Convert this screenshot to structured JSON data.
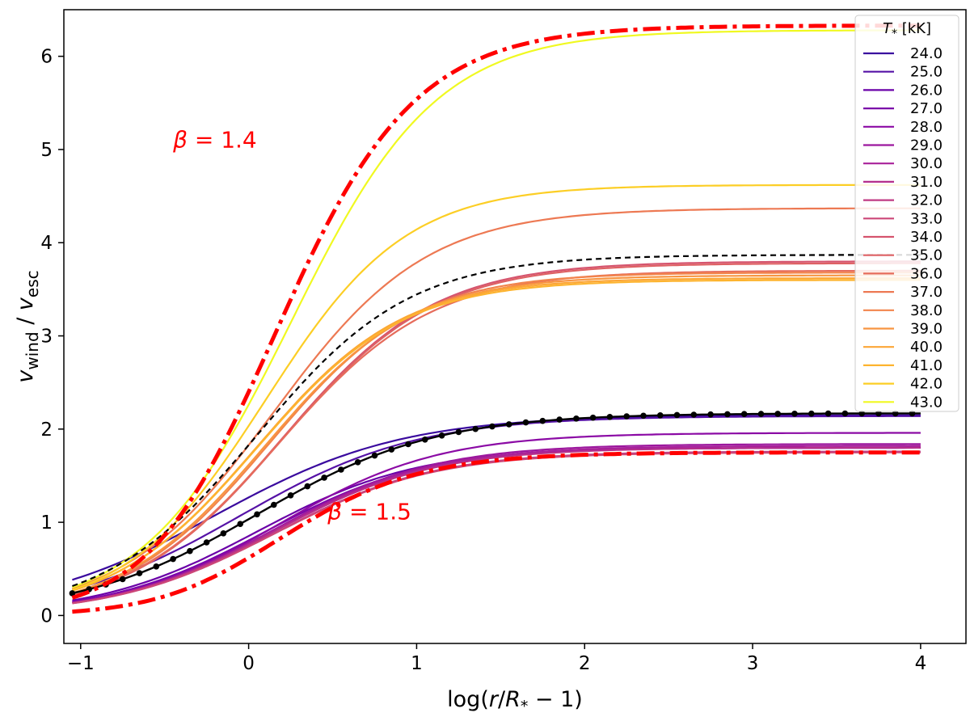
{
  "chart_data": {
    "type": "line",
    "title": "",
    "xlabel": "log(r/R* − 1)",
    "ylabel": "v_wind / v_esc",
    "xlim": [
      -1.1,
      4.27
    ],
    "ylim": [
      -0.3,
      6.5
    ],
    "x_ticks": [
      -1,
      0,
      1,
      2,
      3,
      4
    ],
    "x_tick_labels": [
      "−1",
      "0",
      "1",
      "2",
      "3",
      "4"
    ],
    "y_ticks": [
      0,
      1,
      2,
      3,
      4,
      5,
      6
    ],
    "y_tick_labels": [
      "0",
      "1",
      "2",
      "3",
      "4",
      "5",
      "6"
    ],
    "grid": false,
    "legend": {
      "title": "T* [kK]",
      "title_symbol": "T",
      "title_sub": "*",
      "title_unit": "[kK]",
      "placement": "upper-right",
      "entries": [
        "24.0",
        "25.0",
        "26.0",
        "27.0",
        "28.0",
        "29.0",
        "30.0",
        "31.0",
        "32.0",
        "33.0",
        "34.0",
        "35.0",
        "36.0",
        "37.0",
        "38.0",
        "39.0",
        "40.0",
        "41.0",
        "42.0",
        "43.0"
      ]
    },
    "series": [
      {
        "name": "24.0",
        "color": "#3a0a9e",
        "vinf": 2.15,
        "x0": -0.2,
        "k": 1.8
      },
      {
        "name": "25.0",
        "color": "#5512a6",
        "vinf": 2.14,
        "x0": -0.05,
        "k": 1.9
      },
      {
        "name": "26.0",
        "color": "#6a00a8",
        "vinf": 1.8,
        "x0": 0.05,
        "k": 2.1
      },
      {
        "name": "27.0",
        "color": "#7a06a9",
        "vinf": 1.8,
        "x0": 0.1,
        "k": 2.1
      },
      {
        "name": "28.0",
        "color": "#8b0aa5",
        "vinf": 1.96,
        "x0": 0.18,
        "k": 2.1
      },
      {
        "name": "29.0",
        "color": "#9c179e",
        "vinf": 1.84,
        "x0": 0.15,
        "k": 2.1
      },
      {
        "name": "30.0",
        "color": "#a8219a",
        "vinf": 1.82,
        "x0": 0.15,
        "k": 2.1
      },
      {
        "name": "31.0",
        "color": "#b52f8c",
        "vinf": 1.8,
        "x0": 0.15,
        "k": 2.1
      },
      {
        "name": "32.0",
        "color": "#c03a83",
        "vinf": 1.76,
        "x0": 0.15,
        "k": 2.1
      },
      {
        "name": "33.0",
        "color": "#cc4778",
        "vinf": 1.75,
        "x0": 0.15,
        "k": 2.1
      },
      {
        "name": "34.0",
        "color": "#d5546e",
        "vinf": 3.8,
        "x0": 0.2,
        "k": 2.2
      },
      {
        "name": "35.0",
        "color": "#de6164",
        "vinf": 3.78,
        "x0": 0.2,
        "k": 2.2
      },
      {
        "name": "36.0",
        "color": "#e66c5c",
        "vinf": 3.7,
        "x0": 0.18,
        "k": 2.2
      },
      {
        "name": "37.0",
        "color": "#ed7953",
        "vinf": 4.37,
        "x0": 0.15,
        "k": 2.2
      },
      {
        "name": "38.0",
        "color": "#f2844b",
        "vinf": 3.68,
        "x0": 0.12,
        "k": 2.3
      },
      {
        "name": "39.0",
        "color": "#f89540",
        "vinf": 3.65,
        "x0": 0.1,
        "k": 2.3
      },
      {
        "name": "40.0",
        "color": "#fca636",
        "vinf": 3.62,
        "x0": 0.05,
        "k": 2.3
      },
      {
        "name": "41.0",
        "color": "#fdb42f",
        "vinf": 3.6,
        "x0": 0.05,
        "k": 2.3
      },
      {
        "name": "42.0",
        "color": "#fcce25",
        "vinf": 4.62,
        "x0": 0.1,
        "k": 2.4
      },
      {
        "name": "43.0",
        "color": "#f0f921",
        "vinf": 6.28,
        "x0": 0.25,
        "k": 2.3
      }
    ],
    "fits": [
      {
        "name": "beta = 1.4",
        "beta": 1.4,
        "vinf": 6.33,
        "style": "dash-dot",
        "color": "#ff0000"
      },
      {
        "name": "beta = 1.5",
        "beta": 1.5,
        "vinf": 1.75,
        "style": "dash-dot",
        "color": "#ff0000"
      }
    ],
    "reference_curves": [
      {
        "name": "black dashed",
        "vinf": 3.87,
        "x0": 0.05,
        "k": 2.2,
        "style": "dashed",
        "color": "#000000"
      },
      {
        "name": "black dotted markers",
        "vinf": 2.17,
        "x0": 0.05,
        "k": 1.9,
        "style": "solid-markers",
        "color": "#000000"
      }
    ],
    "annotations": [
      {
        "greek": "β",
        "rest": " = 1.4",
        "x": -0.45,
        "y": 5.02
      },
      {
        "greek": "β",
        "rest": " = 1.5",
        "x": 0.47,
        "y": 1.03
      }
    ]
  }
}
